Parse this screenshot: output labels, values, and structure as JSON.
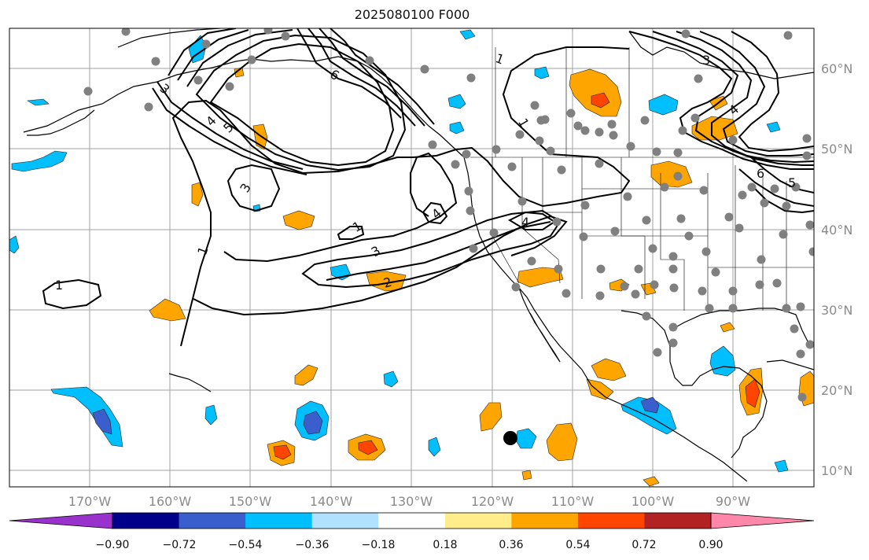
{
  "title": "2025080100 F000",
  "latitude_labels": [
    "60°N",
    "50°N",
    "40°N",
    "30°N",
    "20°N",
    "10°N"
  ],
  "longitude_labels": [
    "170°W",
    "160°W",
    "150°W",
    "140°W",
    "130°W",
    "120°W",
    "110°W",
    "100°W",
    "90°W"
  ],
  "colorbar": {
    "tick_labels": [
      "−0.90",
      "−0.72",
      "−0.54",
      "−0.36",
      "−0.18",
      "0.18",
      "0.36",
      "0.54",
      "0.72",
      "0.90"
    ],
    "colors": [
      "#9932cc",
      "#00008b",
      "#3a5fcd",
      "#00bfff",
      "#b0e2ff",
      "#ffffff",
      "#ffec8b",
      "#ffa500",
      "#ff4500",
      "#b22222",
      "#ff88aa"
    ]
  },
  "contour_labels": [
    "1",
    "1",
    "1",
    "2",
    "3",
    "3",
    "4",
    "4",
    "5",
    "6",
    "4",
    "1",
    "1",
    "3",
    "4",
    "6",
    "5",
    "3"
  ],
  "colors": {
    "coastline": "#000000",
    "grid": "#a0a0a0",
    "contour": "#000000",
    "marker": "#808080",
    "storm": "#000000"
  }
}
